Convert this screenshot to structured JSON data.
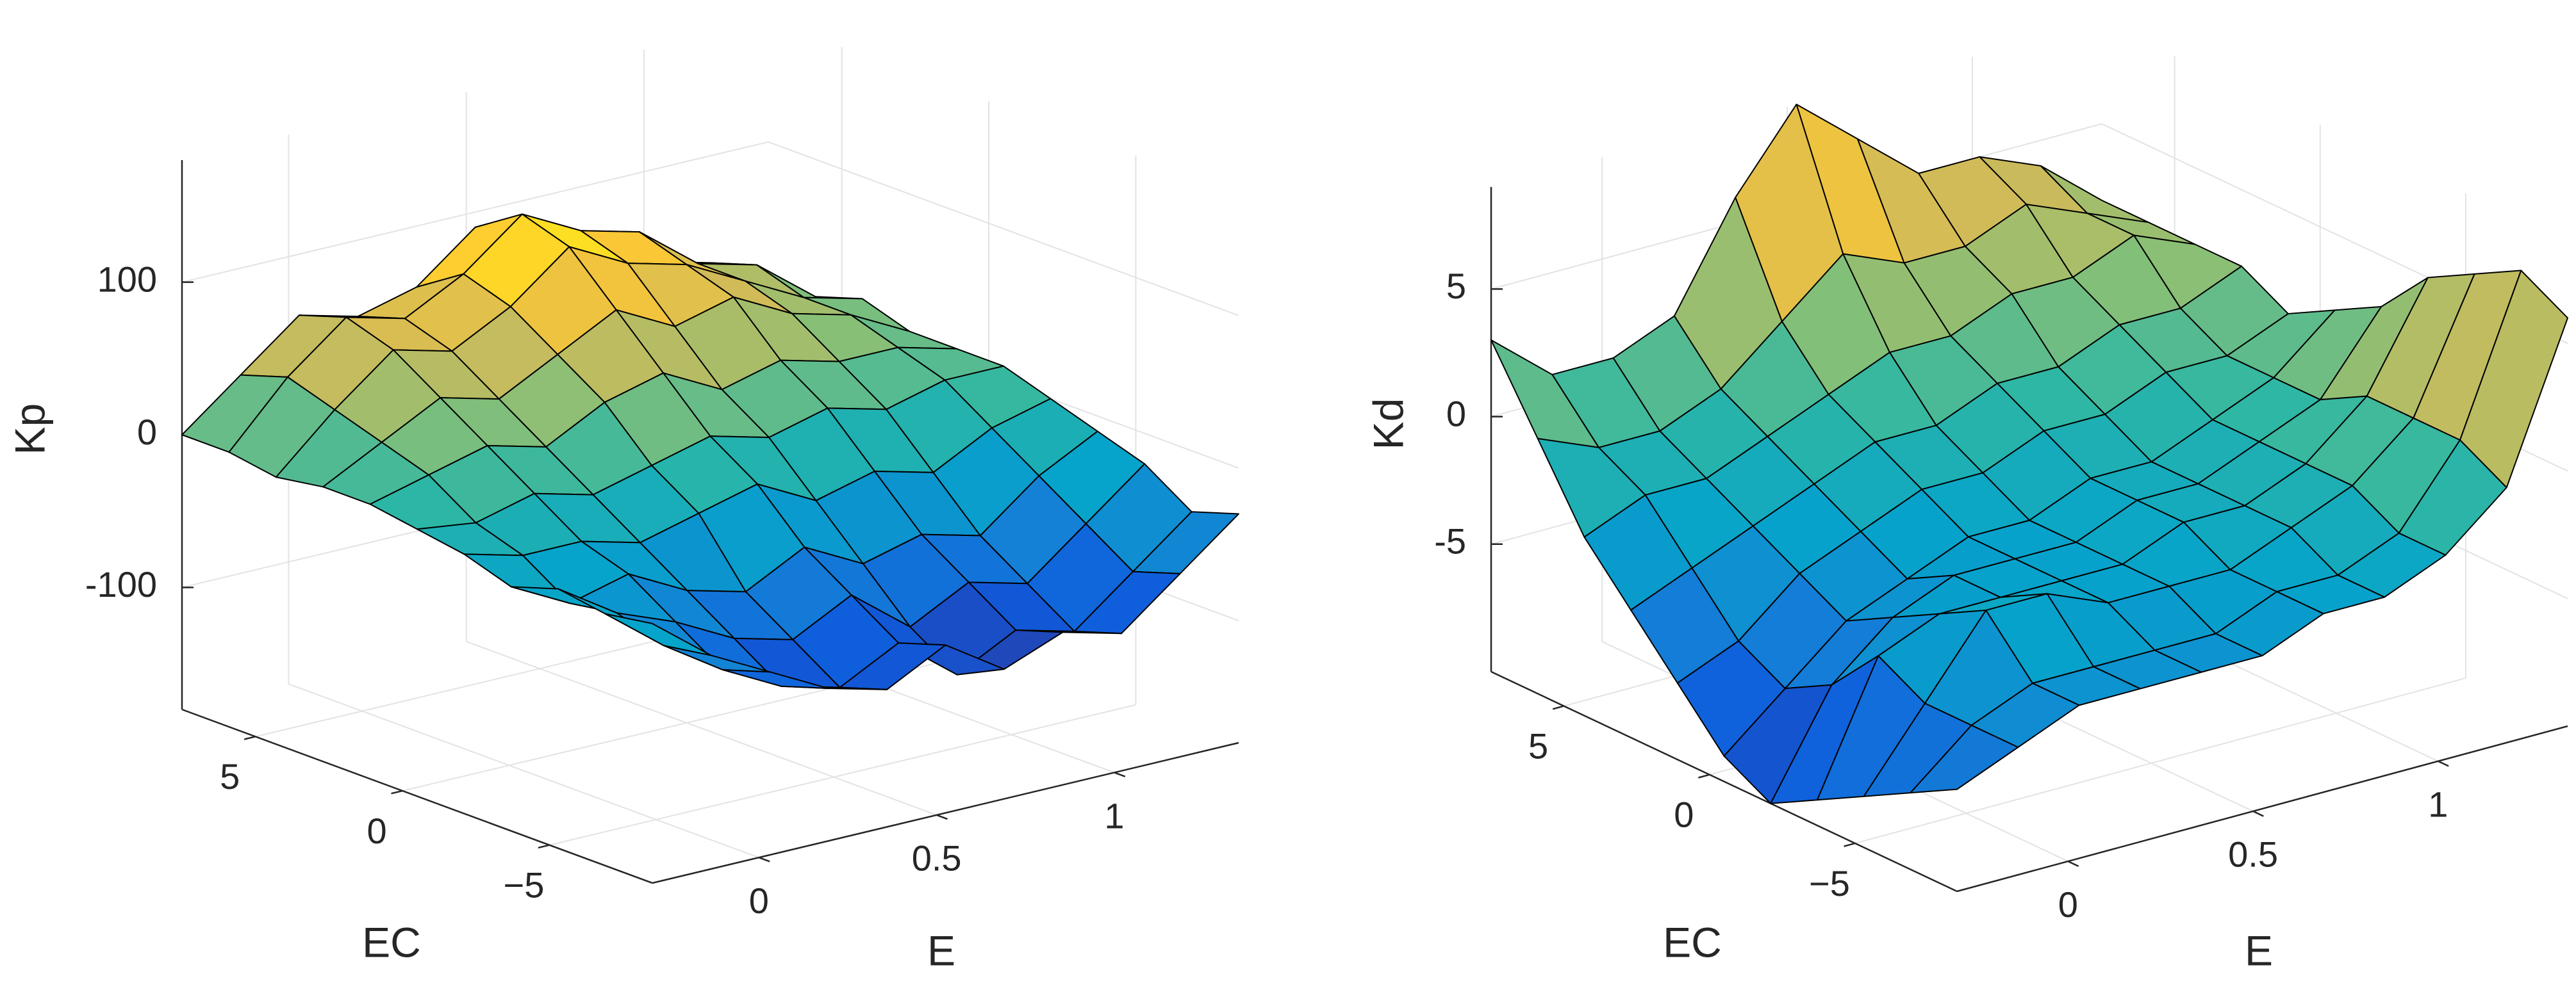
{
  "chart_data": [
    {
      "type": "surface",
      "xlabel": "E",
      "ylabel": "EC",
      "zlabel": "Kp",
      "x": [
        -0.3,
        -0.135,
        0.03,
        0.195,
        0.36,
        0.525,
        0.69,
        0.855,
        1.02,
        1.185,
        1.35
      ],
      "y": [
        -8.5,
        -6.9,
        -5.3,
        -3.7,
        -2.1,
        -0.5,
        1.1,
        2.7,
        4.3,
        5.9,
        7.5
      ],
      "z": [
        [
          -10,
          -40,
          -60,
          -80,
          -90,
          -70,
          -95,
          -80,
          -90,
          -60,
          -30
        ],
        [
          -15,
          -45,
          -70,
          -90,
          -100,
          -80,
          -110,
          -90,
          -100,
          -70,
          -40
        ],
        [
          -10,
          -35,
          -50,
          -70,
          -80,
          -60,
          -90,
          -70,
          -80,
          -50,
          -20
        ],
        [
          -20,
          -40,
          -30,
          -50,
          -60,
          -40,
          -60,
          -50,
          -60,
          -30,
          -10
        ],
        [
          -10,
          -20,
          -20,
          -30,
          -20,
          -10,
          -30,
          -20,
          -30,
          -10,
          0
        ],
        [
          -5,
          -10,
          0,
          -10,
          0,
          10,
          0,
          10,
          0,
          10,
          10
        ],
        [
          0,
          10,
          20,
          10,
          30,
          40,
          20,
          30,
          20,
          20,
          10
        ],
        [
          0,
          20,
          40,
          30,
          50,
          70,
          50,
          60,
          40,
          30,
          10
        ],
        [
          -5,
          30,
          60,
          50,
          70,
          100,
          80,
          70,
          50,
          30,
          20
        ],
        [
          0,
          40,
          70,
          60,
          80,
          110,
          90,
          80,
          50,
          40,
          10
        ],
        [
          0,
          30,
          60,
          50,
          60,
          90,
          70,
          60,
          40,
          30,
          0
        ]
      ],
      "xlim": [
        -0.3,
        1.35
      ],
      "ylim": [
        -8.5,
        7.5
      ],
      "zlim": [
        -180,
        180
      ],
      "xticks": [
        0,
        0.5,
        1
      ],
      "yticks": [
        {
          "value": -5,
          "label": "−5"
        },
        0,
        5
      ],
      "zticks": [
        -100,
        0,
        100
      ],
      "clim": [
        -110,
        110
      ],
      "colormap": [
        "#352a87",
        "#0f5cdd",
        "#1481d6",
        "#06a4ca",
        "#2eb7a4",
        "#87bf77",
        "#d1bb59",
        "#fec832",
        "#f9fb0e"
      ],
      "edge_color": "#000000",
      "grid": true
    },
    {
      "type": "surface",
      "xlabel": "E",
      "ylabel": "EC",
      "zlabel": "Kd",
      "x": [
        -0.3,
        -0.135,
        0.03,
        0.195,
        0.36,
        0.525,
        0.69,
        0.855,
        1.02,
        1.185,
        1.35
      ],
      "y": [
        -8.5,
        -6.9,
        -5.3,
        -3.7,
        -2.1,
        -0.5,
        1.1,
        2.7,
        4.3,
        5.9,
        7.5
      ],
      "z": [
        [
          -6,
          -5,
          -4,
          -4,
          -4,
          -4,
          -3,
          -3,
          -2,
          0,
          6
        ],
        [
          -7,
          -5,
          -4,
          -4,
          -4,
          -4,
          -3,
          -3,
          -2,
          1,
          7
        ],
        [
          -8,
          -5,
          -2,
          -2,
          -3,
          -3,
          -3,
          -2,
          -1,
          1,
          6
        ],
        [
          -9,
          -4,
          -3,
          -3,
          -3,
          -3,
          -2,
          -2,
          -1,
          1,
          5
        ],
        [
          -10,
          -6,
          -4,
          -3,
          -3,
          -3,
          -2,
          -2,
          -1,
          0,
          3
        ],
        [
          -9,
          -7,
          -5,
          -4,
          -3,
          -3,
          -2,
          -2,
          -1,
          0,
          2
        ],
        [
          -7,
          -6,
          -4,
          -3,
          -2,
          -2,
          -1,
          -1,
          0,
          0,
          1
        ],
        [
          -5,
          -4,
          -3,
          -2,
          -1,
          -1,
          0,
          0,
          1,
          1,
          2
        ],
        [
          -3,
          -2,
          -2,
          -1,
          0,
          1,
          1,
          2,
          2,
          3,
          2
        ],
        [
          0,
          -1,
          -1,
          0,
          2,
          4,
          3,
          3,
          4,
          3,
          2
        ],
        [
          3,
          1,
          1,
          2,
          6,
          9,
          7,
          5,
          5,
          4,
          2
        ]
      ],
      "xlim": [
        -0.3,
        1.35
      ],
      "ylim": [
        -8.5,
        7.5
      ],
      "zlim": [
        -10,
        9
      ],
      "xticks": [
        0,
        0.5,
        1
      ],
      "yticks": [
        {
          "value": -5,
          "label": "−5"
        },
        0,
        5
      ],
      "zticks": [
        -5,
        0,
        5
      ],
      "clim": [
        -10,
        9
      ],
      "colormap": [
        "#352a87",
        "#0f5cdd",
        "#1481d6",
        "#06a4ca",
        "#2eb7a4",
        "#87bf77",
        "#d1bb59",
        "#fec832",
        "#f9fb0e"
      ],
      "edge_color": "#000000",
      "grid": true
    }
  ]
}
